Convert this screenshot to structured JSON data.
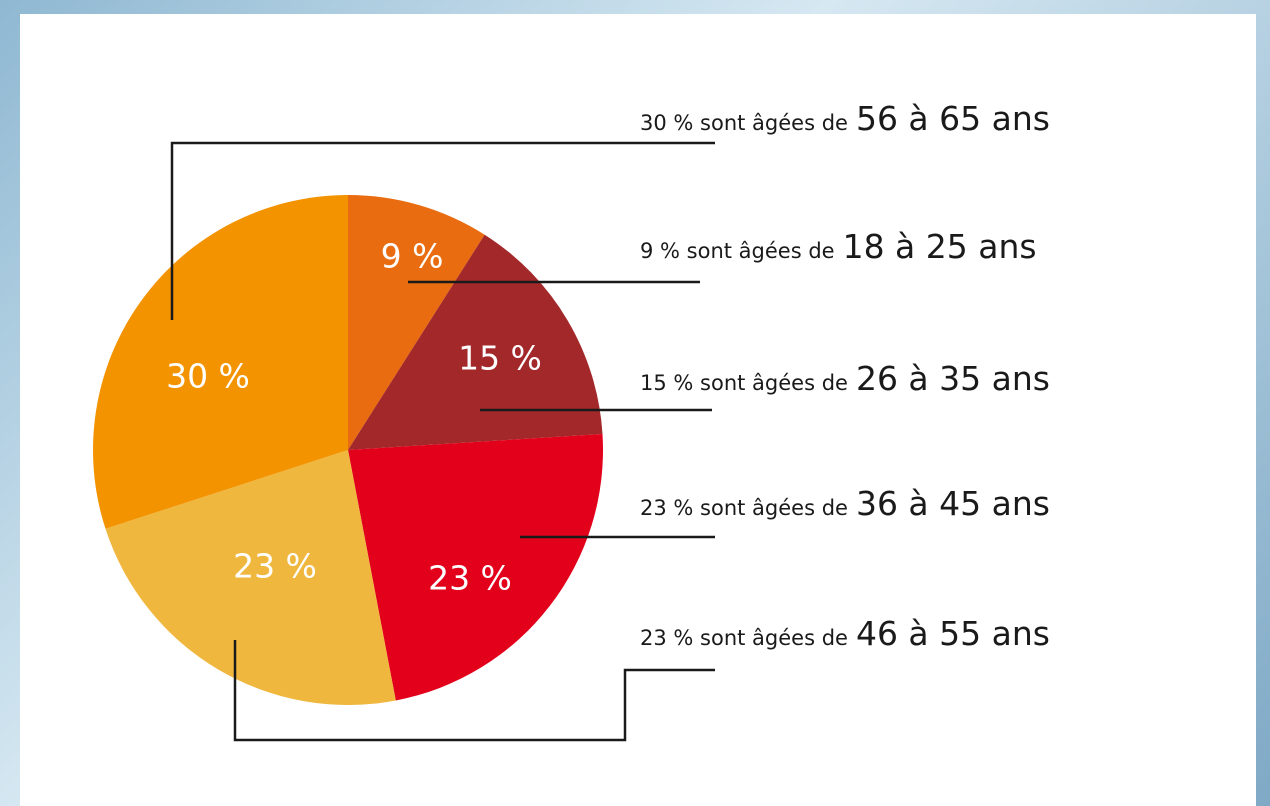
{
  "chart_data": {
    "type": "pie",
    "values": [
      9,
      15,
      23,
      23,
      30
    ],
    "value_labels": [
      "9 %",
      "15 %",
      "23 %",
      "23 %",
      "30 %"
    ],
    "colors": [
      "#e96c10",
      "#a3282a",
      "#e2001b",
      "#f0b73f",
      "#f39300"
    ],
    "labels": [
      {
        "lead": "9 % sont âgées de",
        "range": "18 à 25 ans"
      },
      {
        "lead": "15 % sont âgées de",
        "range": "26 à 35 ans"
      },
      {
        "lead": "23 % sont âgées de",
        "range": "36 à 45 ans"
      },
      {
        "lead": "23 % sont âgées de",
        "range": "46 à 55 ans"
      },
      {
        "lead": "30 % sont âgées de",
        "range": "56 à 65 ans"
      }
    ]
  }
}
